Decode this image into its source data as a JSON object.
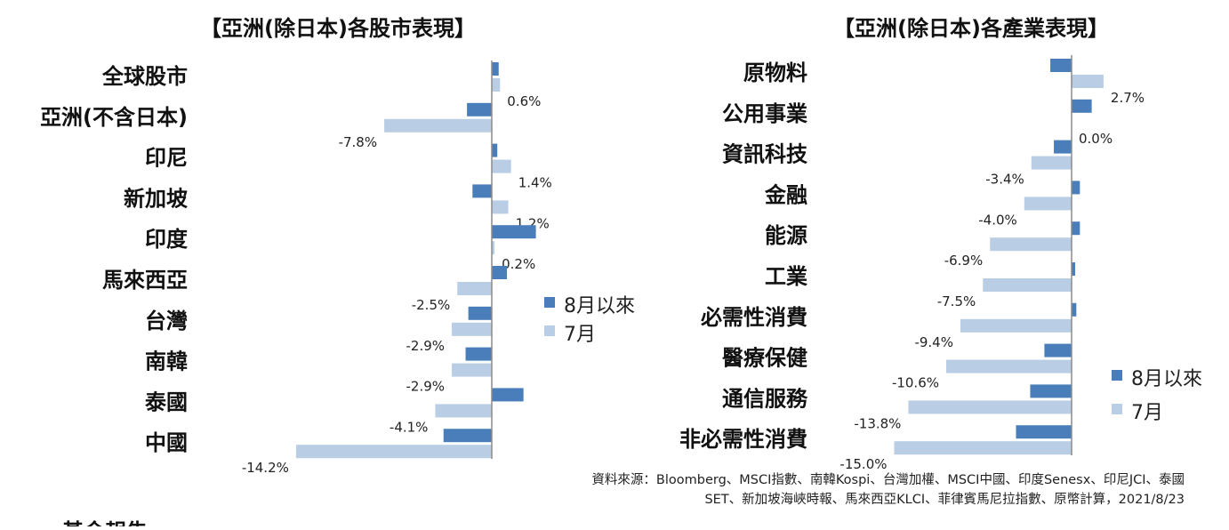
{
  "chart_data": [
    {
      "type": "bar",
      "orientation": "horizontal",
      "title": "【亞洲(除日本)各股市表現】",
      "categories": [
        "全球股市",
        "亞洲(不含日本)",
        "印尼",
        "新加坡",
        "印度",
        "馬來西亞",
        "台灣",
        "南韓",
        "泰國",
        "中國"
      ],
      "series": [
        {
          "name": "8月以來",
          "color": "#4a7ebb",
          "values": [
            0.5,
            -1.8,
            0.4,
            -1.4,
            3.2,
            1.1,
            -1.7,
            -1.9,
            2.3,
            -3.5
          ]
        },
        {
          "name": "7月",
          "color": "#b9cde5",
          "values": [
            0.6,
            -7.8,
            1.4,
            1.2,
            0.2,
            -2.5,
            -2.9,
            -2.9,
            -4.1,
            -14.2
          ]
        }
      ],
      "value_labels": [
        "0.6%",
        "-7.8%",
        "1.4%",
        "1.2%",
        "0.2%",
        "-2.5%",
        "-2.9%",
        "-2.9%",
        "-4.1%",
        "-14.2%"
      ],
      "legend": [
        "8月以來",
        "7月"
      ],
      "legend_position": "right",
      "grid": false
    },
    {
      "type": "bar",
      "orientation": "horizontal",
      "title": "【亞洲(除日本)各產業表現】",
      "categories": [
        "原物料",
        "公用事業",
        "資訊科技",
        "金融",
        "能源",
        "工業",
        "必需性消費",
        "醫療保健",
        "通信服務",
        "非必需性消費"
      ],
      "series": [
        {
          "name": "8月以來",
          "color": "#4a7ebb",
          "values": [
            -1.8,
            1.7,
            -1.5,
            0.7,
            0.7,
            0.3,
            0.4,
            -2.3,
            -3.5,
            -4.7
          ]
        },
        {
          "name": "7月",
          "color": "#b9cde5",
          "values": [
            2.7,
            0.0,
            -3.4,
            -4.0,
            -6.9,
            -7.5,
            -9.4,
            -10.6,
            -13.8,
            -15.0
          ]
        }
      ],
      "value_labels": [
        "2.7%",
        "0.0%",
        "-3.4%",
        "-4.0%",
        "-6.9%",
        "-7.5%",
        "-9.4%",
        "-10.6%",
        "-13.8%",
        "-15.0%"
      ],
      "legend": [
        "8月以來",
        "7月"
      ],
      "legend_position": "bottom-right",
      "grid": false
    }
  ],
  "source": {
    "line1": "資料來源：Bloomberg、MSCI指數、南韓Kospi、台灣加權、MSCI中國、印度Senesx、印尼JCI、泰國",
    "line2": "SET、新加坡海峽時報、馬來西亞KLCI、菲律賓馬尼拉指數、原幣計算，2021/8/23"
  },
  "footer_partial": "基金報告"
}
